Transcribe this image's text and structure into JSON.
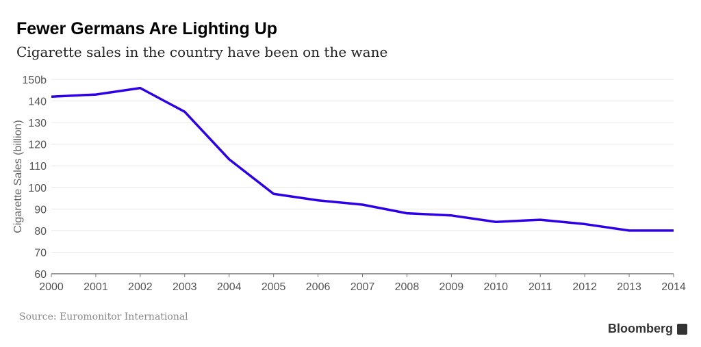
{
  "title": "Fewer Germans Are Lighting Up",
  "subtitle": "Cigarette sales in the country have been on the wane",
  "source": "Source: Euromonitor International",
  "brand": "Bloomberg",
  "chart_data": {
    "type": "line",
    "ylabel": "Cigarette Sales (billion)",
    "x": [
      2000,
      2001,
      2002,
      2003,
      2004,
      2005,
      2006,
      2007,
      2008,
      2009,
      2010,
      2011,
      2012,
      2013,
      2014
    ],
    "values": [
      142,
      143,
      146,
      135,
      113,
      97,
      94,
      92,
      88,
      87,
      84,
      85,
      83,
      80,
      80
    ],
    "ylim": [
      60,
      150
    ],
    "yticks": [
      "60",
      "70",
      "80",
      "90",
      "100",
      "110",
      "120",
      "130",
      "140",
      "150b"
    ],
    "xticks": [
      "2000",
      "2001",
      "2002",
      "2003",
      "2004",
      "2005",
      "2006",
      "2007",
      "2008",
      "2009",
      "2010",
      "2011",
      "2012",
      "2013",
      "2014"
    ],
    "grid": true,
    "color": "#2d00e6"
  }
}
